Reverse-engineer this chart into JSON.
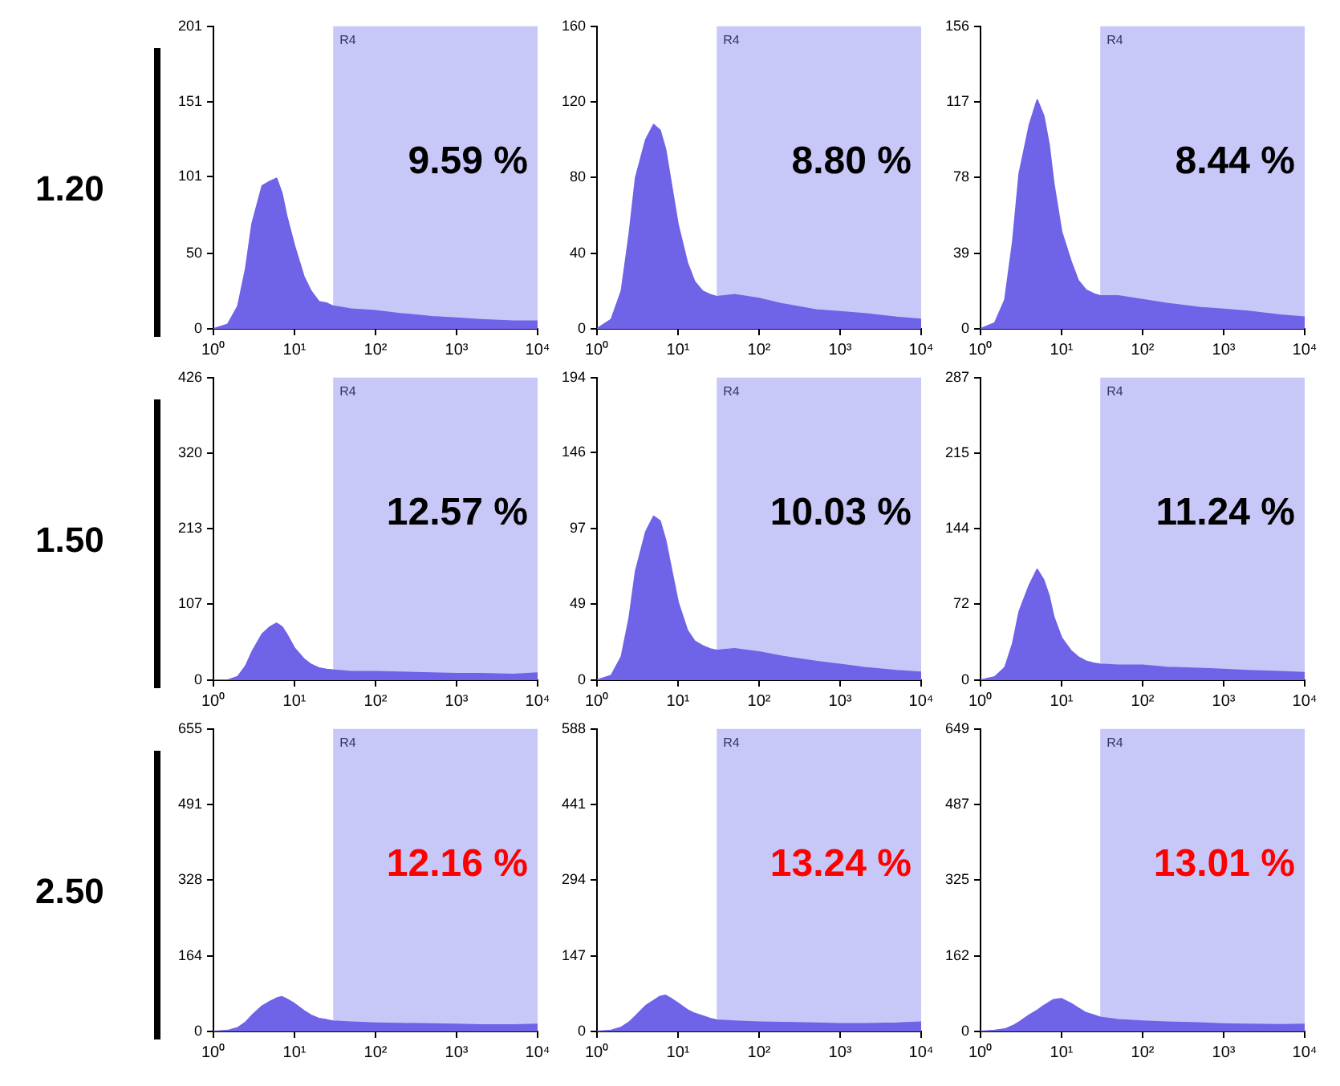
{
  "chart_data": [
    {
      "type": "area",
      "annotations": [
        "1.20",
        "9.59 %"
      ],
      "x": [
        1,
        1.5,
        2,
        2.5,
        3,
        4,
        5,
        6,
        7,
        8,
        10,
        13,
        16,
        20,
        25,
        30,
        50,
        100,
        200,
        500,
        1000,
        2000,
        5000,
        10000
      ],
      "series": [
        {
          "color": "#6f63e8",
          "values": [
            0,
            3,
            15,
            40,
            70,
            95,
            98,
            100,
            90,
            75,
            55,
            35,
            25,
            18,
            17,
            15,
            13,
            12,
            10,
            8,
            7,
            6,
            5,
            5
          ]
        }
      ],
      "log": "x",
      "xlim": [
        1,
        10000
      ],
      "xticks": [
        {
          "value": 1,
          "label": "10⁰"
        },
        {
          "value": 10,
          "label": "10¹"
        },
        {
          "value": 100,
          "label": "10²"
        },
        {
          "value": 1000,
          "label": "10³"
        },
        {
          "value": 10000,
          "label": "10⁴"
        }
      ],
      "ylim": [
        0,
        201
      ],
      "yticks": [
        0,
        50,
        101,
        151,
        201
      ],
      "bands": [
        {
          "axis": "x",
          "from": 30,
          "to": 10000,
          "label": "R4",
          "color": "#c8c8f8"
        }
      ],
      "marker": "none",
      "legend": false
    },
    {
      "type": "area",
      "annotations": [
        "8.80 %"
      ],
      "x": [
        1,
        1.5,
        2,
        2.5,
        3,
        4,
        5,
        6,
        7,
        8,
        10,
        13,
        16,
        20,
        25,
        30,
        50,
        100,
        200,
        500,
        1000,
        2000,
        5000,
        10000
      ],
      "series": [
        {
          "color": "#6f63e8",
          "values": [
            0,
            5,
            20,
            50,
            80,
            100,
            108,
            105,
            95,
            80,
            55,
            35,
            25,
            20,
            18,
            17,
            18,
            16,
            13,
            10,
            9,
            8,
            6,
            5
          ]
        }
      ],
      "log": "x",
      "xlim": [
        1,
        10000
      ],
      "xticks": [
        {
          "value": 1,
          "label": "10⁰"
        },
        {
          "value": 10,
          "label": "10¹"
        },
        {
          "value": 100,
          "label": "10²"
        },
        {
          "value": 1000,
          "label": "10³"
        },
        {
          "value": 10000,
          "label": "10⁴"
        }
      ],
      "ylim": [
        0,
        160
      ],
      "yticks": [
        0,
        40,
        80,
        120,
        160
      ],
      "bands": [
        {
          "axis": "x",
          "from": 30,
          "to": 10000,
          "label": "R4",
          "color": "#c8c8f8"
        }
      ],
      "marker": "none",
      "legend": false
    },
    {
      "type": "area",
      "annotations": [
        "8.44 %"
      ],
      "x": [
        1,
        1.5,
        2,
        2.5,
        3,
        4,
        5,
        6,
        7,
        8,
        10,
        13,
        16,
        20,
        25,
        30,
        50,
        100,
        200,
        500,
        1000,
        2000,
        5000,
        10000
      ],
      "series": [
        {
          "color": "#6f63e8",
          "values": [
            0,
            3,
            15,
            45,
            80,
            105,
            118,
            110,
            95,
            75,
            50,
            35,
            25,
            20,
            18,
            17,
            17,
            15,
            13,
            11,
            10,
            9,
            7,
            6
          ]
        }
      ],
      "log": "x",
      "xlim": [
        1,
        10000
      ],
      "xticks": [
        {
          "value": 1,
          "label": "10⁰"
        },
        {
          "value": 10,
          "label": "10¹"
        },
        {
          "value": 100,
          "label": "10²"
        },
        {
          "value": 1000,
          "label": "10³"
        },
        {
          "value": 10000,
          "label": "10⁴"
        }
      ],
      "ylim": [
        0,
        156
      ],
      "yticks": [
        0,
        39,
        78,
        117,
        156
      ],
      "bands": [
        {
          "axis": "x",
          "from": 30,
          "to": 10000,
          "label": "R4",
          "color": "#c8c8f8"
        }
      ],
      "marker": "none",
      "legend": false
    },
    {
      "type": "area",
      "annotations": [
        "1.50",
        "12.57 %"
      ],
      "x": [
        1,
        1.5,
        2,
        2.5,
        3,
        4,
        5,
        6,
        7,
        8,
        10,
        13,
        16,
        20,
        25,
        30,
        50,
        100,
        200,
        500,
        1000,
        2000,
        5000,
        10000
      ],
      "series": [
        {
          "color": "#6f63e8",
          "values": [
            0,
            0,
            5,
            20,
            40,
            65,
            75,
            80,
            75,
            65,
            45,
            30,
            22,
            17,
            15,
            14,
            12,
            12,
            11,
            10,
            9,
            9,
            8,
            10
          ]
        }
      ],
      "log": "x",
      "xlim": [
        1,
        10000
      ],
      "xticks": [
        {
          "value": 1,
          "label": "10⁰"
        },
        {
          "value": 10,
          "label": "10¹"
        },
        {
          "value": 100,
          "label": "10²"
        },
        {
          "value": 1000,
          "label": "10³"
        },
        {
          "value": 10000,
          "label": "10⁴"
        }
      ],
      "ylim": [
        0,
        426
      ],
      "yticks": [
        0,
        107,
        213,
        320,
        426
      ],
      "bands": [
        {
          "axis": "x",
          "from": 30,
          "to": 10000,
          "label": "R4",
          "color": "#c8c8f8"
        }
      ],
      "marker": "none",
      "legend": false
    },
    {
      "type": "area",
      "annotations": [
        "10.03 %"
      ],
      "x": [
        1,
        1.5,
        2,
        2.5,
        3,
        4,
        5,
        6,
        7,
        8,
        10,
        13,
        16,
        20,
        25,
        30,
        50,
        100,
        200,
        500,
        1000,
        2000,
        5000,
        10000
      ],
      "series": [
        {
          "color": "#6f63e8",
          "values": [
            0,
            3,
            15,
            40,
            70,
            95,
            105,
            102,
            90,
            75,
            50,
            32,
            25,
            22,
            20,
            19,
            20,
            18,
            15,
            12,
            10,
            8,
            6,
            5
          ]
        }
      ],
      "log": "x",
      "xlim": [
        1,
        10000
      ],
      "xticks": [
        {
          "value": 1,
          "label": "10⁰"
        },
        {
          "value": 10,
          "label": "10¹"
        },
        {
          "value": 100,
          "label": "10²"
        },
        {
          "value": 1000,
          "label": "10³"
        },
        {
          "value": 10000,
          "label": "10⁴"
        }
      ],
      "ylim": [
        0,
        194
      ],
      "yticks": [
        0,
        49,
        97,
        146,
        194
      ],
      "bands": [
        {
          "axis": "x",
          "from": 30,
          "to": 10000,
          "label": "R4",
          "color": "#c8c8f8"
        }
      ],
      "marker": "none",
      "legend": false
    },
    {
      "type": "area",
      "annotations": [
        "11.24 %"
      ],
      "x": [
        1,
        1.5,
        2,
        2.5,
        3,
        4,
        5,
        6,
        7,
        8,
        10,
        13,
        16,
        20,
        25,
        30,
        50,
        100,
        200,
        500,
        1000,
        2000,
        5000,
        10000
      ],
      "series": [
        {
          "color": "#6f63e8",
          "values": [
            0,
            3,
            12,
            35,
            65,
            90,
            105,
            95,
            80,
            60,
            40,
            28,
            22,
            18,
            16,
            15,
            14,
            14,
            12,
            11,
            10,
            9,
            8,
            7
          ]
        }
      ],
      "log": "x",
      "xlim": [
        1,
        10000
      ],
      "xticks": [
        {
          "value": 1,
          "label": "10⁰"
        },
        {
          "value": 10,
          "label": "10¹"
        },
        {
          "value": 100,
          "label": "10²"
        },
        {
          "value": 1000,
          "label": "10³"
        },
        {
          "value": 10000,
          "label": "10⁴"
        }
      ],
      "ylim": [
        0,
        287
      ],
      "yticks": [
        0,
        72,
        144,
        215,
        287
      ],
      "bands": [
        {
          "axis": "x",
          "from": 30,
          "to": 10000,
          "label": "R4",
          "color": "#c8c8f8"
        }
      ],
      "marker": "none",
      "legend": false
    },
    {
      "type": "area",
      "annotations": [
        "2.50",
        "12.16 %"
      ],
      "x": [
        1,
        1.5,
        2,
        2.5,
        3,
        4,
        5,
        6,
        7,
        8,
        10,
        13,
        16,
        20,
        25,
        30,
        50,
        100,
        200,
        500,
        1000,
        2000,
        5000,
        10000
      ],
      "series": [
        {
          "color": "#6f63e8",
          "values": [
            0,
            2,
            8,
            20,
            35,
            55,
            65,
            72,
            75,
            70,
            60,
            45,
            35,
            28,
            25,
            22,
            20,
            18,
            17,
            16,
            15,
            14,
            14,
            15
          ]
        }
      ],
      "log": "x",
      "xlim": [
        1,
        10000
      ],
      "xticks": [
        {
          "value": 1,
          "label": "10⁰"
        },
        {
          "value": 10,
          "label": "10¹"
        },
        {
          "value": 100,
          "label": "10²"
        },
        {
          "value": 1000,
          "label": "10³"
        },
        {
          "value": 10000,
          "label": "10⁴"
        }
      ],
      "ylim": [
        0,
        655
      ],
      "yticks": [
        0,
        164,
        328,
        491,
        655
      ],
      "bands": [
        {
          "axis": "x",
          "from": 30,
          "to": 10000,
          "label": "R4",
          "color": "#c8c8f8"
        }
      ],
      "marker": "none",
      "legend": false
    },
    {
      "type": "area",
      "annotations": [
        "13.24 %"
      ],
      "x": [
        1,
        1.5,
        2,
        2.5,
        3,
        4,
        5,
        6,
        7,
        8,
        10,
        13,
        16,
        20,
        25,
        30,
        50,
        100,
        200,
        500,
        1000,
        2000,
        5000,
        10000
      ],
      "series": [
        {
          "color": "#6f63e8",
          "values": [
            0,
            2,
            8,
            18,
            30,
            50,
            60,
            68,
            70,
            65,
            55,
            42,
            35,
            30,
            25,
            22,
            20,
            18,
            17,
            16,
            15,
            15,
            16,
            18
          ]
        }
      ],
      "log": "x",
      "xlim": [
        1,
        10000
      ],
      "xticks": [
        {
          "value": 1,
          "label": "10⁰"
        },
        {
          "value": 10,
          "label": "10¹"
        },
        {
          "value": 100,
          "label": "10²"
        },
        {
          "value": 1000,
          "label": "10³"
        },
        {
          "value": 10000,
          "label": "10⁴"
        }
      ],
      "ylim": [
        0,
        588
      ],
      "yticks": [
        0,
        147,
        294,
        441,
        588
      ],
      "bands": [
        {
          "axis": "x",
          "from": 30,
          "to": 10000,
          "label": "R4",
          "color": "#c8c8f8"
        }
      ],
      "marker": "none",
      "legend": false
    },
    {
      "type": "area",
      "annotations": [
        "13.01 %"
      ],
      "x": [
        1,
        1.5,
        2,
        2.5,
        3,
        4,
        5,
        6,
        7,
        8,
        10,
        13,
        16,
        20,
        25,
        30,
        50,
        100,
        200,
        500,
        1000,
        2000,
        5000,
        10000
      ],
      "series": [
        {
          "color": "#6f63e8",
          "values": [
            0,
            2,
            5,
            12,
            20,
            35,
            45,
            55,
            62,
            68,
            70,
            60,
            50,
            40,
            35,
            30,
            25,
            22,
            20,
            18,
            16,
            15,
            14,
            15
          ]
        }
      ],
      "log": "x",
      "xlim": [
        1,
        10000
      ],
      "xticks": [
        {
          "value": 1,
          "label": "10⁰"
        },
        {
          "value": 10,
          "label": "10¹"
        },
        {
          "value": 100,
          "label": "10²"
        },
        {
          "value": 1000,
          "label": "10³"
        },
        {
          "value": 10000,
          "label": "10⁴"
        }
      ],
      "ylim": [
        0,
        649
      ],
      "yticks": [
        0,
        162,
        325,
        487,
        649
      ],
      "bands": [
        {
          "axis": "x",
          "from": 30,
          "to": 10000,
          "label": "R4",
          "color": "#c8c8f8"
        }
      ],
      "marker": "none",
      "legend": false
    }
  ]
}
